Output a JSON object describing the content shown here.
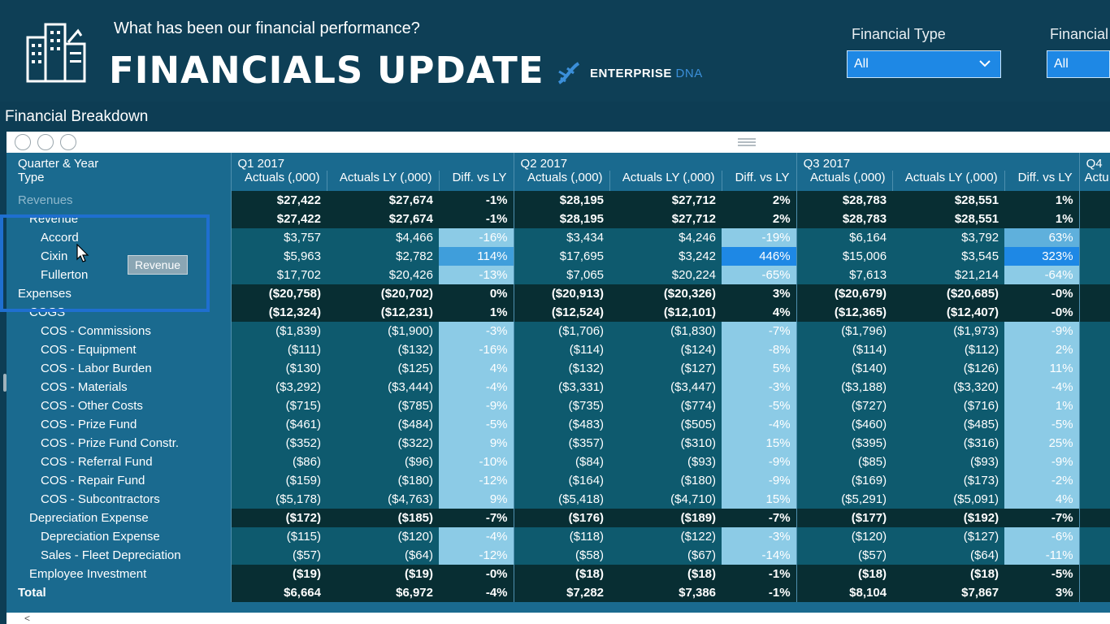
{
  "header": {
    "subtitle": "What has been our financial performance?",
    "title": "FINANCIALS UPDATE",
    "brand_main": "ENTERPRISE",
    "brand_accent": "DNA"
  },
  "filters": [
    {
      "label": "Financial Type",
      "value": "All"
    },
    {
      "label": "Financial",
      "value": "All"
    }
  ],
  "section_title": "Financial Breakdown",
  "table": {
    "corner_top": "Quarter & Year",
    "corner_bottom": "Type",
    "quarters": [
      "Q1 2017",
      "Q2 2017",
      "Q3 2017",
      "Q4"
    ],
    "col_headers": [
      "Actuals (,000)",
      "Actuals LY (,000)",
      "Diff. vs LY"
    ],
    "partial_col_header": "Actu",
    "rows": [
      {
        "label": "Revenues",
        "level": 0,
        "style": "dark",
        "bold": true,
        "cells": [
          "$27,422",
          "$27,674",
          "-1%",
          "$28,195",
          "$27,712",
          "2%",
          "$28,783",
          "$28,551",
          "1%"
        ]
      },
      {
        "label": "Revenue",
        "level": 1,
        "style": "dark",
        "bold": true,
        "cells": [
          "$27,422",
          "$27,674",
          "-1%",
          "$28,195",
          "$27,712",
          "2%",
          "$28,783",
          "$28,551",
          "1%"
        ]
      },
      {
        "label": "Accord",
        "level": 2,
        "style": "mid",
        "bold": false,
        "cells": [
          "$3,757",
          "$4,466",
          "-16%",
          "$3,434",
          "$4,246",
          "-19%",
          "$6,164",
          "$3,792",
          "63%"
        ]
      },
      {
        "label": "Cixin",
        "level": 2,
        "style": "mid",
        "bold": false,
        "cells": [
          "$5,963",
          "$2,782",
          "114%",
          "$17,695",
          "$3,242",
          "446%",
          "$15,006",
          "$3,545",
          "323%"
        ]
      },
      {
        "label": "Fullerton",
        "level": 2,
        "style": "mid",
        "bold": false,
        "cells": [
          "$17,702",
          "$20,426",
          "-13%",
          "$7,065",
          "$20,224",
          "-65%",
          "$7,613",
          "$21,214",
          "-64%"
        ]
      },
      {
        "label": "Expenses",
        "level": 0,
        "style": "dark",
        "bold": true,
        "cells": [
          "($20,758)",
          "($20,702)",
          "0%",
          "($20,913)",
          "($20,326)",
          "3%",
          "($20,679)",
          "($20,685)",
          "-0%"
        ]
      },
      {
        "label": "COGS",
        "level": 1,
        "style": "dark",
        "bold": true,
        "cells": [
          "($12,324)",
          "($12,231)",
          "1%",
          "($12,524)",
          "($12,101)",
          "4%",
          "($12,365)",
          "($12,407)",
          "-0%"
        ]
      },
      {
        "label": "COS - Commissions",
        "level": 2,
        "style": "mid",
        "bold": false,
        "cells": [
          "($1,839)",
          "($1,900)",
          "-3%",
          "($1,706)",
          "($1,830)",
          "-7%",
          "($1,796)",
          "($1,973)",
          "-9%"
        ]
      },
      {
        "label": "COS - Equipment",
        "level": 2,
        "style": "mid",
        "bold": false,
        "cells": [
          "($111)",
          "($132)",
          "-16%",
          "($114)",
          "($124)",
          "-8%",
          "($114)",
          "($112)",
          "2%"
        ]
      },
      {
        "label": "COS - Labor Burden",
        "level": 2,
        "style": "mid",
        "bold": false,
        "cells": [
          "($130)",
          "($125)",
          "4%",
          "($132)",
          "($127)",
          "5%",
          "($140)",
          "($126)",
          "11%"
        ]
      },
      {
        "label": "COS - Materials",
        "level": 2,
        "style": "mid",
        "bold": false,
        "cells": [
          "($3,292)",
          "($3,444)",
          "-4%",
          "($3,331)",
          "($3,447)",
          "-3%",
          "($3,188)",
          "($3,320)",
          "-4%"
        ]
      },
      {
        "label": "COS - Other Costs",
        "level": 2,
        "style": "mid",
        "bold": false,
        "cells": [
          "($715)",
          "($785)",
          "-9%",
          "($735)",
          "($774)",
          "-5%",
          "($727)",
          "($716)",
          "1%"
        ]
      },
      {
        "label": "COS - Prize Fund",
        "level": 2,
        "style": "mid",
        "bold": false,
        "cells": [
          "($461)",
          "($484)",
          "-5%",
          "($483)",
          "($505)",
          "-4%",
          "($460)",
          "($485)",
          "-5%"
        ]
      },
      {
        "label": "COS - Prize Fund Constr.",
        "level": 2,
        "style": "mid",
        "bold": false,
        "cells": [
          "($352)",
          "($322)",
          "9%",
          "($357)",
          "($310)",
          "15%",
          "($395)",
          "($316)",
          "25%"
        ]
      },
      {
        "label": "COS - Referral Fund",
        "level": 2,
        "style": "mid",
        "bold": false,
        "cells": [
          "($86)",
          "($96)",
          "-10%",
          "($84)",
          "($93)",
          "-9%",
          "($85)",
          "($93)",
          "-9%"
        ]
      },
      {
        "label": "COS - Repair Fund",
        "level": 2,
        "style": "mid",
        "bold": false,
        "cells": [
          "($159)",
          "($180)",
          "-12%",
          "($164)",
          "($180)",
          "-9%",
          "($169)",
          "($173)",
          "-2%"
        ]
      },
      {
        "label": "COS - Subcontractors",
        "level": 2,
        "style": "mid",
        "bold": false,
        "cells": [
          "($5,178)",
          "($4,763)",
          "9%",
          "($5,418)",
          "($4,710)",
          "15%",
          "($5,291)",
          "($5,091)",
          "4%"
        ]
      },
      {
        "label": "Depreciation Expense",
        "level": 1,
        "style": "dark",
        "bold": true,
        "cells": [
          "($172)",
          "($185)",
          "-7%",
          "($176)",
          "($189)",
          "-7%",
          "($177)",
          "($192)",
          "-7%"
        ]
      },
      {
        "label": "Depreciation Expense",
        "level": 2,
        "style": "mid",
        "bold": false,
        "cells": [
          "($115)",
          "($120)",
          "-4%",
          "($118)",
          "($122)",
          "-3%",
          "($120)",
          "($127)",
          "-6%"
        ]
      },
      {
        "label": "Sales - Fleet Depreciation",
        "level": 2,
        "style": "mid",
        "bold": false,
        "cells": [
          "($57)",
          "($64)",
          "-12%",
          "($58)",
          "($67)",
          "-14%",
          "($57)",
          "($64)",
          "-11%"
        ]
      },
      {
        "label": "Employee Investment",
        "level": 1,
        "style": "dark",
        "bold": true,
        "cells": [
          "($19)",
          "($19)",
          "-0%",
          "($18)",
          "($18)",
          "-1%",
          "($18)",
          "($18)",
          "-5%"
        ]
      },
      {
        "label": "Total",
        "level": 0,
        "style": "dark",
        "bold": true,
        "cells": [
          "$6,664",
          "$6,972",
          "-4%",
          "$7,282",
          "$7,386",
          "-1%",
          "$8,104",
          "$7,867",
          "3%"
        ]
      }
    ]
  },
  "tooltip": "Revenue",
  "colors": {
    "diff_scale_low": "#6fb7d6",
    "diff_scale_high": "#1e88e5",
    "selection_box": "#1f6fd0"
  }
}
